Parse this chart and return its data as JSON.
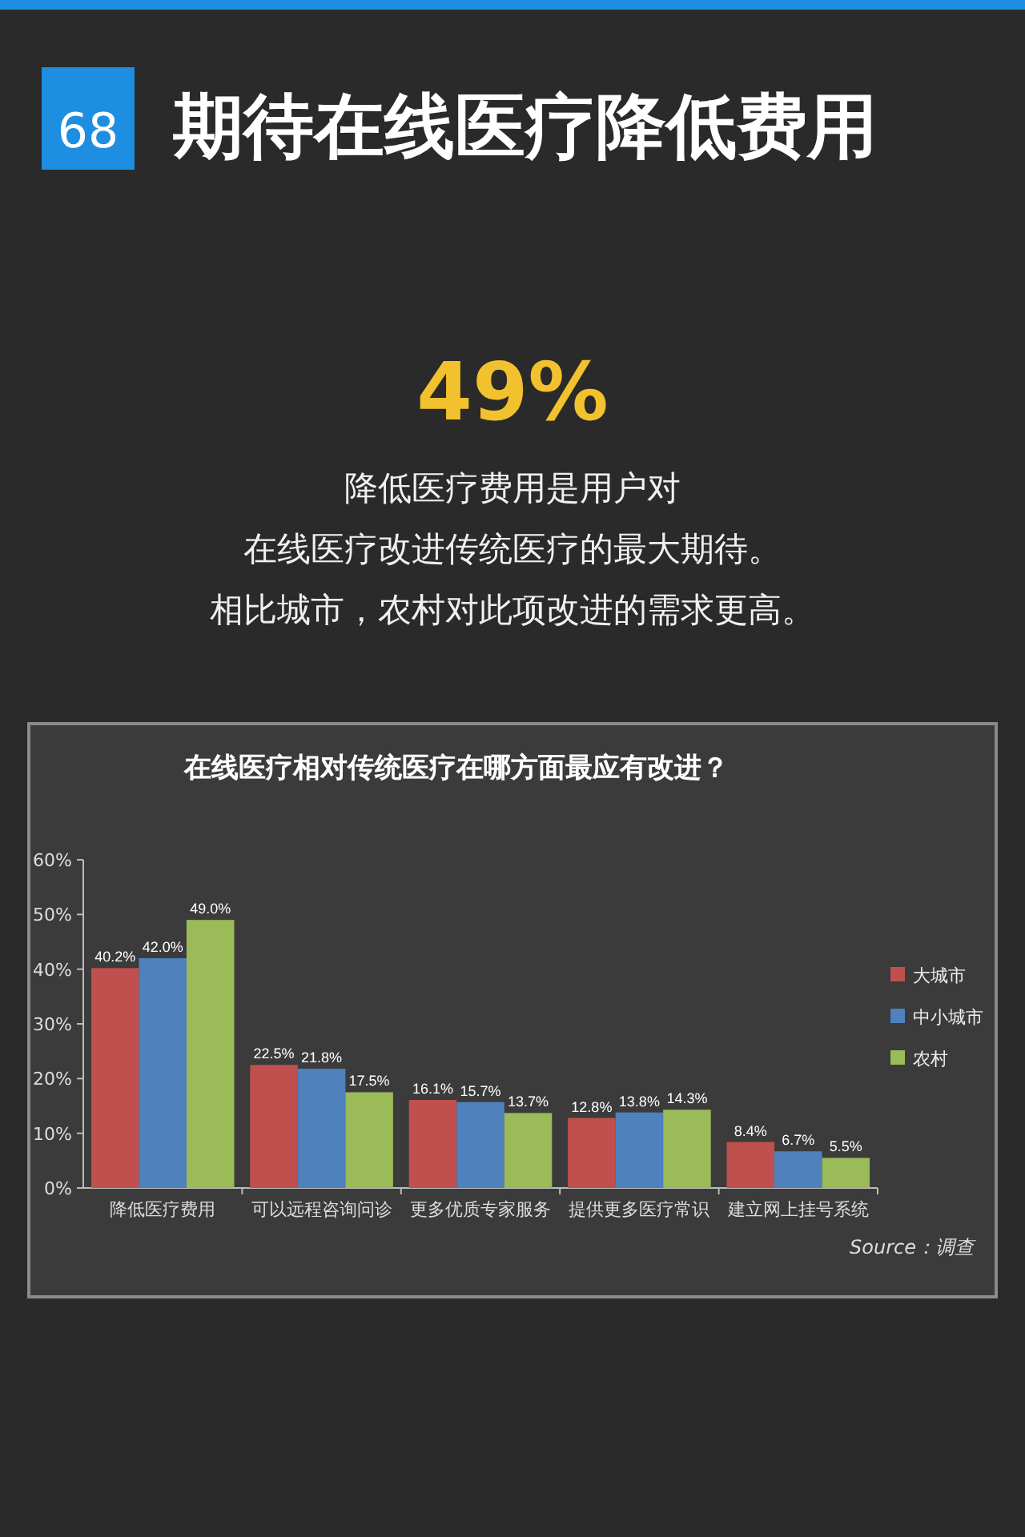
{
  "chart_data": {
    "type": "bar",
    "title": "期待在线医疗降低费用",
    "subtitle": "在线医疗相对传统医疗在哪方面最应有改进？",
    "annotations": [
      "68",
      "49%",
      "降低医疗费用是用户对",
      "在线医疗改进传统医疗的最大期待。",
      "相比城市，农村对此项改进的需求更高。",
      "Source：调查"
    ],
    "categories": [
      "降低医疗费用",
      "可以远程咨询问诊",
      "更多优质专家服务",
      "提供更多医疗常识",
      "建立网上挂号系统"
    ],
    "series": [
      {
        "name": "大城市",
        "color": "#c0504d",
        "values": [
          40.2,
          22.5,
          16.1,
          12.8,
          8.4
        ],
        "value_labels": [
          "40.2%",
          "22.5%",
          "16.1%",
          "12.8%",
          "8.4%"
        ]
      },
      {
        "name": "中小城市",
        "color": "#4f81bd",
        "values": [
          42.0,
          21.8,
          15.7,
          13.8,
          6.7
        ],
        "value_labels": [
          "42.0%",
          "21.8%",
          "15.7%",
          "13.8%",
          "6.7%"
        ]
      },
      {
        "name": "农村",
        "color": "#9bbb59",
        "values": [
          49.0,
          17.5,
          13.7,
          14.3,
          5.5
        ],
        "value_labels": [
          "49.0%",
          "17.5%",
          "13.7%",
          "14.3%",
          "5.5%"
        ]
      }
    ],
    "ylim": [
      0,
      60
    ],
    "yticks": [
      {
        "value": 0,
        "label": "0%"
      },
      {
        "value": 10,
        "label": "10%"
      },
      {
        "value": 20,
        "label": "20%"
      },
      {
        "value": 30,
        "label": "30%"
      },
      {
        "value": 40,
        "label": "40%"
      },
      {
        "value": 50,
        "label": "50%"
      },
      {
        "value": 60,
        "label": "60%"
      }
    ],
    "legend": "right"
  }
}
